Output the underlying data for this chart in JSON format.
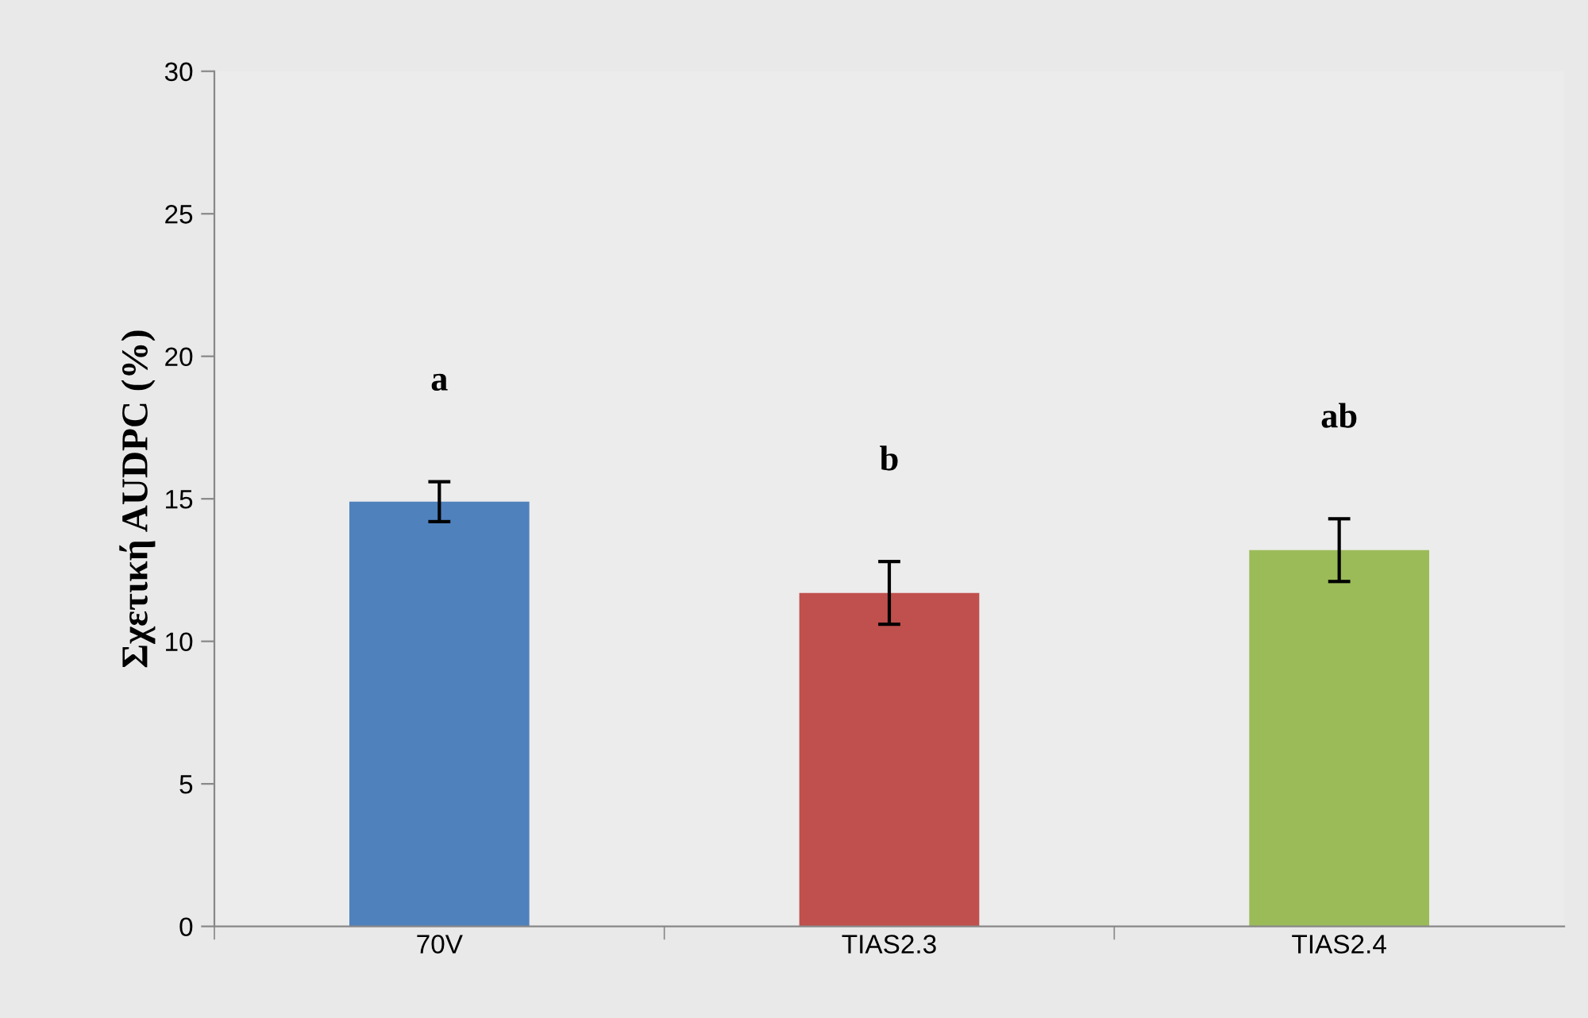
{
  "chart_data": {
    "type": "bar",
    "ylabel": "Σχετική AUDPC (%)",
    "categories": [
      "70V",
      "TIAS2.3",
      "TIAS2.4"
    ],
    "values": [
      14.9,
      11.7,
      13.2
    ],
    "colors": [
      "#4f81bd",
      "#c0504d",
      "#9bbb59"
    ],
    "errors": [
      0.7,
      1.1,
      1.1
    ],
    "ylim": [
      0,
      30
    ],
    "yticks": [
      0,
      5,
      10,
      15,
      20,
      25,
      30
    ],
    "grid": false,
    "annotations": [
      "a",
      "b",
      "ab"
    ]
  }
}
